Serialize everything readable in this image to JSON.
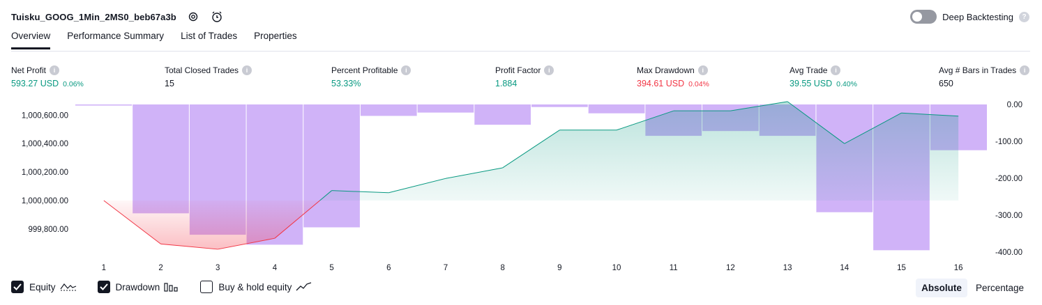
{
  "header": {
    "strategy_name": "Tuisku_GOOG_1Min_2MS0_beb67a3b",
    "deep_backtesting_label": "Deep Backtesting",
    "deep_backtesting_enabled": false
  },
  "tabs": [
    {
      "label": "Overview",
      "active": true
    },
    {
      "label": "Performance Summary",
      "active": false
    },
    {
      "label": "List of Trades",
      "active": false
    },
    {
      "label": "Properties",
      "active": false
    }
  ],
  "metrics": {
    "net_profit": {
      "label": "Net Profit",
      "value": "593.27 USD",
      "pct": "0.06%"
    },
    "total_closed_trades": {
      "label": "Total Closed Trades",
      "value": "15"
    },
    "percent_profitable": {
      "label": "Percent Profitable",
      "value": "53.33%"
    },
    "profit_factor": {
      "label": "Profit Factor",
      "value": "1.884"
    },
    "max_drawdown": {
      "label": "Max Drawdown",
      "value": "394.61 USD",
      "pct": "0.04%"
    },
    "avg_trade": {
      "label": "Avg Trade",
      "value": "39.55 USD",
      "pct": "0.40%"
    },
    "avg_bars": {
      "label": "Avg # Bars in Trades",
      "value": "650"
    }
  },
  "chart_data": {
    "type": "line",
    "x": [
      1,
      2,
      3,
      4,
      5,
      6,
      7,
      8,
      9,
      10,
      11,
      12,
      13,
      14,
      15,
      16
    ],
    "left_axis": {
      "ticks": [
        "1,000,600.00",
        "1,000,400.00",
        "1,000,200.00",
        "1,000,000.00",
        "999,800.00"
      ],
      "tick_values": [
        1000600,
        1000400,
        1000200,
        1000000,
        999800
      ]
    },
    "right_axis": {
      "ticks": [
        "0.00",
        "-100.00",
        "-200.00",
        "-300.00",
        "-400.00"
      ],
      "tick_values": [
        0,
        -100,
        -200,
        -300,
        -400
      ]
    },
    "baseline_equity": 1000000,
    "series": [
      {
        "name": "Equity",
        "color": "#089981",
        "loss_color": "#f23645",
        "values": [
          1000000,
          999695,
          999658,
          999735,
          1000070,
          1000055,
          1000155,
          1000230,
          1000495,
          1000495,
          1000630,
          1000630,
          1000695,
          1000400,
          1000615,
          1000593
        ]
      },
      {
        "name": "Drawdown",
        "color": "#c8a6f7",
        "values": [
          -3,
          -295,
          -353,
          -380,
          -333,
          -31,
          -22,
          -55,
          -7,
          -24,
          -85,
          -72,
          -85,
          -292,
          -395,
          -124
        ]
      }
    ],
    "grid": false
  },
  "legend": {
    "equity": {
      "label": "Equity",
      "checked": true
    },
    "drawdown": {
      "label": "Drawdown",
      "checked": true
    },
    "buy_hold": {
      "label": "Buy & hold equity",
      "checked": false
    }
  },
  "mode": {
    "absolute": "Absolute",
    "percentage": "Percentage",
    "selected": "absolute"
  }
}
